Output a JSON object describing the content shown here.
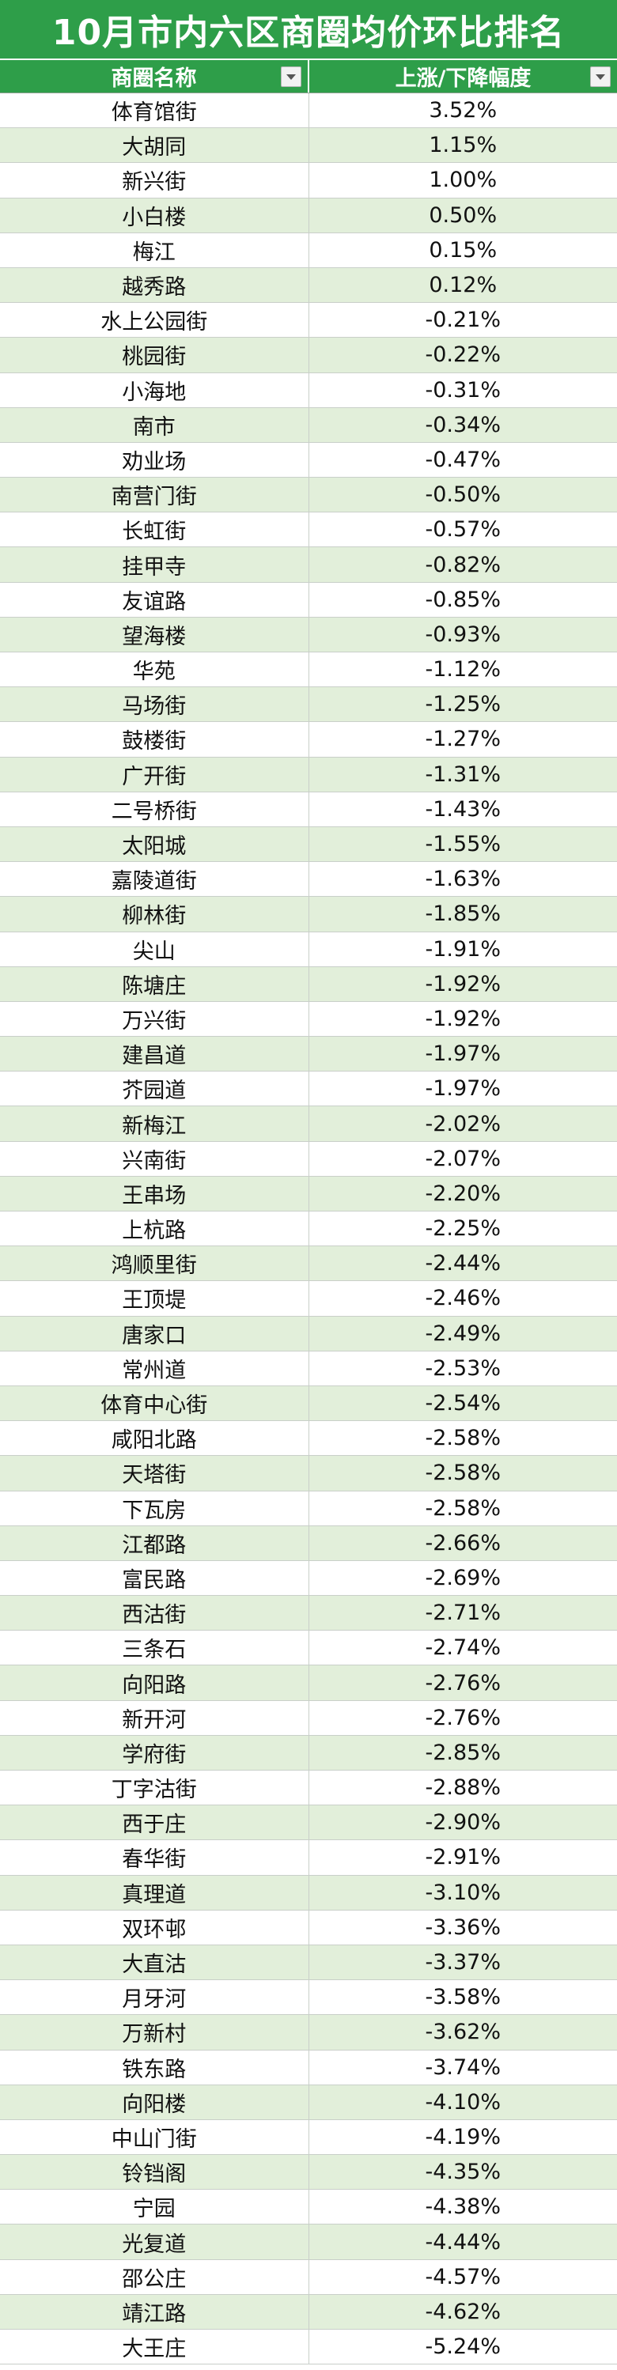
{
  "title": "10月市内六区商圈均价环比排名",
  "columns": [
    "商圈名称",
    "上涨/下降幅度"
  ],
  "rows": [
    [
      "体育馆街",
      "3.52%"
    ],
    [
      "大胡同",
      "1.15%"
    ],
    [
      "新兴街",
      "1.00%"
    ],
    [
      "小白楼",
      "0.50%"
    ],
    [
      "梅江",
      "0.15%"
    ],
    [
      "越秀路",
      "0.12%"
    ],
    [
      "水上公园街",
      "-0.21%"
    ],
    [
      "桃园街",
      "-0.22%"
    ],
    [
      "小海地",
      "-0.31%"
    ],
    [
      "南市",
      "-0.34%"
    ],
    [
      "劝业场",
      "-0.47%"
    ],
    [
      "南营门街",
      "-0.50%"
    ],
    [
      "长虹街",
      "-0.57%"
    ],
    [
      "挂甲寺",
      "-0.82%"
    ],
    [
      "友谊路",
      "-0.85%"
    ],
    [
      "望海楼",
      "-0.93%"
    ],
    [
      "华苑",
      "-1.12%"
    ],
    [
      "马场街",
      "-1.25%"
    ],
    [
      "鼓楼街",
      "-1.27%"
    ],
    [
      "广开街",
      "-1.31%"
    ],
    [
      "二号桥街",
      "-1.43%"
    ],
    [
      "太阳城",
      "-1.55%"
    ],
    [
      "嘉陵道街",
      "-1.63%"
    ],
    [
      "柳林街",
      "-1.85%"
    ],
    [
      "尖山",
      "-1.91%"
    ],
    [
      "陈塘庄",
      "-1.92%"
    ],
    [
      "万兴街",
      "-1.92%"
    ],
    [
      "建昌道",
      "-1.97%"
    ],
    [
      "芥园道",
      "-1.97%"
    ],
    [
      "新梅江",
      "-2.02%"
    ],
    [
      "兴南街",
      "-2.07%"
    ],
    [
      "王串场",
      "-2.20%"
    ],
    [
      "上杭路",
      "-2.25%"
    ],
    [
      "鸿顺里街",
      "-2.44%"
    ],
    [
      "王顶堤",
      "-2.46%"
    ],
    [
      "唐家口",
      "-2.49%"
    ],
    [
      "常州道",
      "-2.53%"
    ],
    [
      "体育中心街",
      "-2.54%"
    ],
    [
      "咸阳北路",
      "-2.58%"
    ],
    [
      "天塔街",
      "-2.58%"
    ],
    [
      "下瓦房",
      "-2.58%"
    ],
    [
      "江都路",
      "-2.66%"
    ],
    [
      "富民路",
      "-2.69%"
    ],
    [
      "西沽街",
      "-2.71%"
    ],
    [
      "三条石",
      "-2.74%"
    ],
    [
      "向阳路",
      "-2.76%"
    ],
    [
      "新开河",
      "-2.76%"
    ],
    [
      "学府街",
      "-2.85%"
    ],
    [
      "丁字沽街",
      "-2.88%"
    ],
    [
      "西于庄",
      "-2.90%"
    ],
    [
      "春华街",
      "-2.91%"
    ],
    [
      "真理道",
      "-3.10%"
    ],
    [
      "双环邨",
      "-3.36%"
    ],
    [
      "大直沽",
      "-3.37%"
    ],
    [
      "月牙河",
      "-3.58%"
    ],
    [
      "万新村",
      "-3.62%"
    ],
    [
      "铁东路",
      "-3.74%"
    ],
    [
      "向阳楼",
      "-4.10%"
    ],
    [
      "中山门街",
      "-4.19%"
    ],
    [
      "铃铛阁",
      "-4.35%"
    ],
    [
      "宁园",
      "-4.38%"
    ],
    [
      "光复道",
      "-4.44%"
    ],
    [
      "邵公庄",
      "-4.57%"
    ],
    [
      "靖江路",
      "-4.62%"
    ],
    [
      "大王庄",
      "-5.24%"
    ]
  ],
  "colors": {
    "header_green": "#2e9e49",
    "band_green": "#e2efda"
  },
  "icons": [
    "filter-dropdown-icon"
  ]
}
